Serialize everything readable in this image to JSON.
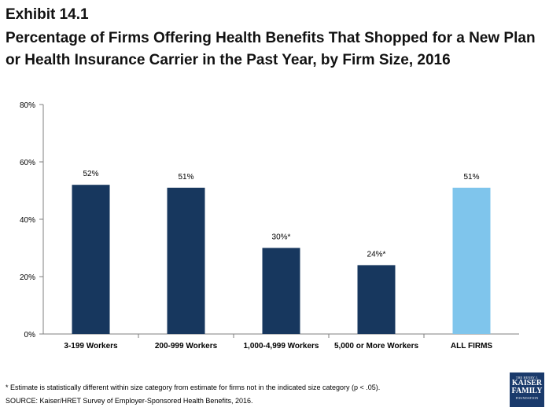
{
  "header": {
    "exhibit": "Exhibit 14.1",
    "title": "Percentage of Firms Offering Health Benefits That Shopped for a New Plan or Health Insurance Carrier in the Past Year, by Firm Size, 2016"
  },
  "chart_data": {
    "type": "bar",
    "categories": [
      "3-199 Workers",
      "200-999 Workers",
      "1,000-4,999 Workers",
      "5,000 or More Workers",
      "ALL FIRMS"
    ],
    "values": [
      52,
      51,
      30,
      24,
      51
    ],
    "data_labels": [
      "52%",
      "51%",
      "30%*",
      "24%*",
      "51%"
    ],
    "colors": [
      "#17375e",
      "#17375e",
      "#17375e",
      "#17375e",
      "#7fc5ec"
    ],
    "yticks": [
      "0%",
      "20%",
      "40%",
      "60%",
      "80%"
    ],
    "ylim": [
      0,
      80
    ],
    "grid": false,
    "legend": "none"
  },
  "footnotes": {
    "note": "* Estimate is statistically different within size category from estimate for firms not in the indicated size category (p < .05).",
    "source": "SOURCE: Kaiser/HRET Survey of Employer-Sponsored Health Benefits, 2016."
  },
  "logo": {
    "line1": "THE HENRY J.",
    "line2": "KAISER",
    "line3": "FAMILY",
    "line4": "FOUNDATION"
  }
}
